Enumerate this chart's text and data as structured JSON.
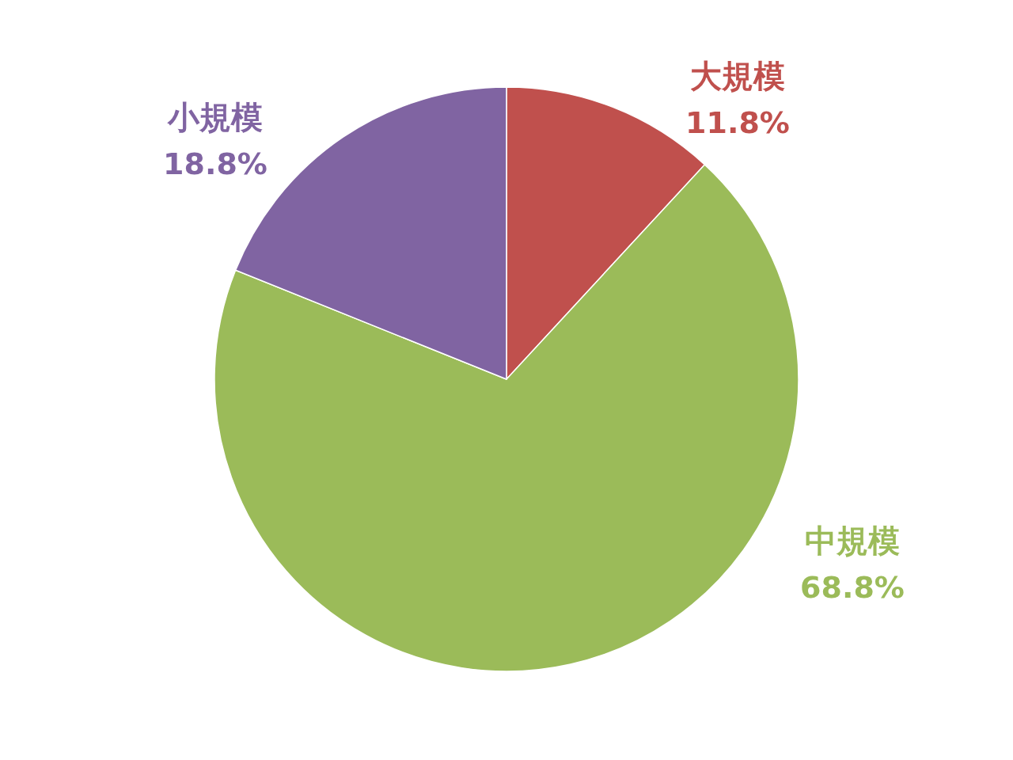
{
  "chart_data": {
    "type": "pie",
    "categories": [
      "大規模",
      "中規模",
      "小規模"
    ],
    "values": [
      11.8,
      68.8,
      18.8
    ],
    "colors": [
      "#c0504d",
      "#9bbb59",
      "#8064a2"
    ],
    "value_labels": [
      "11.8%",
      "68.8%",
      "18.8%"
    ]
  }
}
